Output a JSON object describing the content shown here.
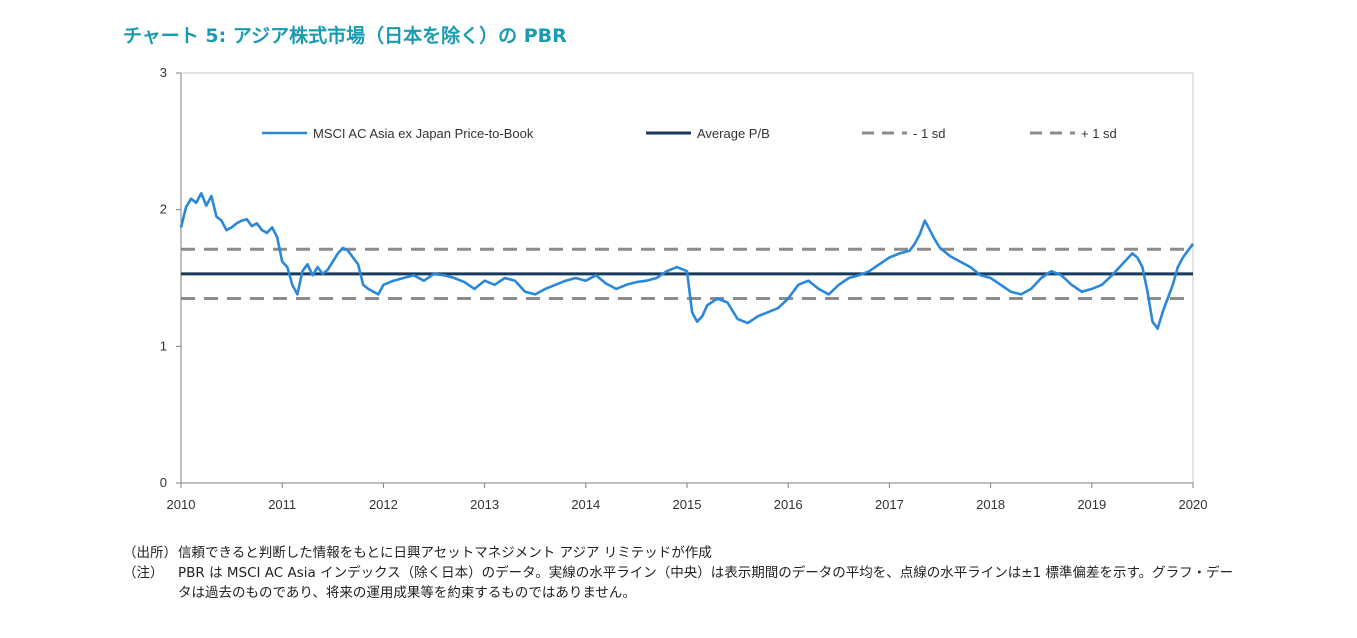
{
  "title": "チャート 5: アジア株式市場（日本を除く）の PBR",
  "chart_data": {
    "type": "line",
    "title": "チャート 5: アジア株式市場（日本を除く）の PBR",
    "xlabel": "",
    "ylabel": "",
    "xlim": [
      2010,
      2020
    ],
    "ylim": [
      0,
      3
    ],
    "x_ticks": [
      "2010",
      "2011",
      "2012",
      "2013",
      "2014",
      "2015",
      "2016",
      "2017",
      "2018",
      "2019",
      "2020"
    ],
    "y_ticks": [
      "0",
      "1",
      "2",
      "3"
    ],
    "grid": false,
    "legend_position": "top",
    "legend": [
      "MSCI AC Asia ex Japan Price-to-Book",
      "Average P/B",
      "- 1 sd",
      "+ 1 sd"
    ],
    "series": [
      {
        "name": "MSCI AC Asia ex Japan Price-to-Book",
        "color": "#2b88d8",
        "style": "solid",
        "x": [
          2010.0,
          2010.05,
          2010.1,
          2010.15,
          2010.2,
          2010.25,
          2010.3,
          2010.35,
          2010.4,
          2010.45,
          2010.5,
          2010.55,
          2010.6,
          2010.65,
          2010.7,
          2010.75,
          2010.8,
          2010.85,
          2010.9,
          2010.95,
          2011.0,
          2011.05,
          2011.1,
          2011.15,
          2011.2,
          2011.25,
          2011.3,
          2011.35,
          2011.4,
          2011.45,
          2011.5,
          2011.55,
          2011.6,
          2011.65,
          2011.7,
          2011.75,
          2011.8,
          2011.85,
          2011.9,
          2011.95,
          2012.0,
          2012.1,
          2012.2,
          2012.3,
          2012.4,
          2012.5,
          2012.6,
          2012.7,
          2012.8,
          2012.9,
          2013.0,
          2013.1,
          2013.2,
          2013.3,
          2013.4,
          2013.5,
          2013.6,
          2013.7,
          2013.8,
          2013.9,
          2014.0,
          2014.1,
          2014.2,
          2014.3,
          2014.4,
          2014.5,
          2014.6,
          2014.7,
          2014.8,
          2014.9,
          2015.0,
          2015.05,
          2015.1,
          2015.15,
          2015.2,
          2015.3,
          2015.4,
          2015.5,
          2015.6,
          2015.7,
          2015.8,
          2015.9,
          2016.0,
          2016.1,
          2016.2,
          2016.3,
          2016.4,
          2016.5,
          2016.6,
          2016.7,
          2016.8,
          2016.9,
          2017.0,
          2017.1,
          2017.2,
          2017.25,
          2017.3,
          2017.35,
          2017.4,
          2017.45,
          2017.5,
          2017.6,
          2017.7,
          2017.8,
          2017.9,
          2018.0,
          2018.1,
          2018.2,
          2018.3,
          2018.4,
          2018.5,
          2018.6,
          2018.7,
          2018.8,
          2018.9,
          2019.0,
          2019.1,
          2019.2,
          2019.3,
          2019.4,
          2019.45,
          2019.5,
          2019.55,
          2019.6,
          2019.65,
          2019.7,
          2019.75,
          2019.8,
          2019.85,
          2019.9,
          2019.95,
          2020.0
        ],
        "values": [
          1.87,
          2.02,
          2.08,
          2.05,
          2.12,
          2.03,
          2.1,
          1.95,
          1.92,
          1.85,
          1.87,
          1.9,
          1.92,
          1.93,
          1.88,
          1.9,
          1.85,
          1.83,
          1.87,
          1.8,
          1.62,
          1.58,
          1.45,
          1.38,
          1.55,
          1.6,
          1.52,
          1.58,
          1.53,
          1.56,
          1.62,
          1.68,
          1.72,
          1.7,
          1.65,
          1.6,
          1.45,
          1.42,
          1.4,
          1.38,
          1.45,
          1.48,
          1.5,
          1.52,
          1.48,
          1.53,
          1.52,
          1.5,
          1.47,
          1.42,
          1.48,
          1.45,
          1.5,
          1.48,
          1.4,
          1.38,
          1.42,
          1.45,
          1.48,
          1.5,
          1.48,
          1.52,
          1.46,
          1.42,
          1.45,
          1.47,
          1.48,
          1.5,
          1.55,
          1.58,
          1.55,
          1.25,
          1.18,
          1.22,
          1.3,
          1.35,
          1.32,
          1.2,
          1.17,
          1.22,
          1.25,
          1.28,
          1.35,
          1.45,
          1.48,
          1.42,
          1.38,
          1.45,
          1.5,
          1.52,
          1.55,
          1.6,
          1.65,
          1.68,
          1.7,
          1.75,
          1.82,
          1.92,
          1.85,
          1.78,
          1.72,
          1.66,
          1.62,
          1.58,
          1.52,
          1.5,
          1.45,
          1.4,
          1.38,
          1.42,
          1.5,
          1.55,
          1.52,
          1.45,
          1.4,
          1.42,
          1.45,
          1.52,
          1.6,
          1.68,
          1.65,
          1.58,
          1.4,
          1.18,
          1.13,
          1.25,
          1.35,
          1.45,
          1.58,
          1.65,
          1.7,
          1.75
        ]
      },
      {
        "name": "Average P/B",
        "color": "#1a3a5c",
        "style": "solid",
        "x": [
          2010,
          2020
        ],
        "values": [
          1.53,
          1.53
        ]
      },
      {
        "name": "- 1 sd",
        "color": "#8c8c8c",
        "style": "dashed",
        "x": [
          2010,
          2020
        ],
        "values": [
          1.35,
          1.35
        ]
      },
      {
        "name": "+ 1 sd",
        "color": "#8c8c8c",
        "style": "dashed",
        "x": [
          2010,
          2020
        ],
        "values": [
          1.71,
          1.71
        ]
      }
    ]
  },
  "notes": {
    "source_key": "（出所）",
    "source_text": "信頼できると判断した情報をもとに日興アセットマネジメント アジア リミテッドが作成",
    "note_key": "（注）",
    "note_text": "PBR は MSCI AC Asia インデックス（除く日本）のデータ。実線の水平ライン（中央）は表示期間のデータの平均を、点線の水平ラインは±1 標準偏差を示す。グラフ・データは過去のものであり、将来の運用成果等を約束するものではありません。"
  }
}
